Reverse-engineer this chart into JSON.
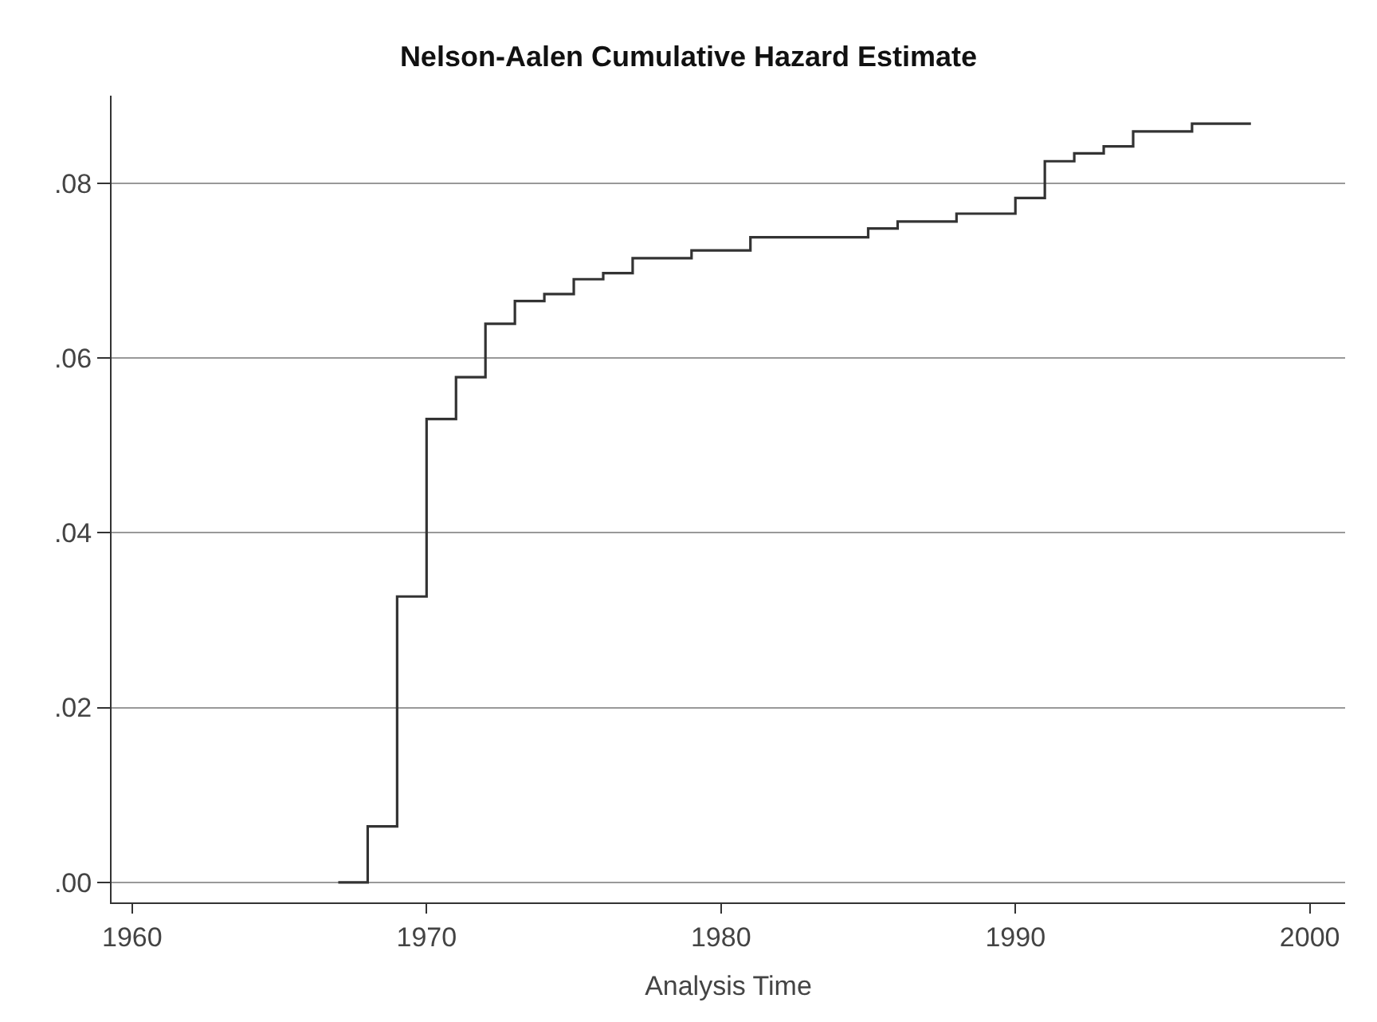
{
  "chart_data": {
    "type": "step",
    "title": "Nelson-Aalen Cumulative Hazard Estimate",
    "xlabel": "Analysis Time",
    "x": [
      1967,
      1968,
      1969,
      1970,
      1971,
      1972,
      1973,
      1974,
      1975,
      1976,
      1977,
      1979,
      1981,
      1985,
      1986,
      1988,
      1990,
      1991,
      1992,
      1993,
      1994,
      1996,
      1998
    ],
    "series": [
      {
        "color": "#333333",
        "values": [
          0,
          0.0064,
          0.0327,
          0.053,
          0.0578,
          0.0639,
          0.0665,
          0.0673,
          0.069,
          0.0697,
          0.0714,
          0.0723,
          0.0738,
          0.0748,
          0.0756,
          0.0765,
          0.0783,
          0.0825,
          0.0834,
          0.0842,
          0.0859,
          0.0868,
          0.0868
        ]
      }
    ],
    "xlim": [
      1959.3,
      2001.2
    ],
    "xticks": [
      1960,
      1970,
      1980,
      1990,
      2000
    ],
    "ylim": [
      -0.0023,
      0.09
    ],
    "yticks": [
      {
        "value": 0,
        "label": ".00"
      },
      {
        "value": 0.02,
        "label": ".02"
      },
      {
        "value": 0.04,
        "label": ".04"
      },
      {
        "value": 0.06,
        "label": ".06"
      },
      {
        "value": 0.08,
        "label": ".08"
      }
    ],
    "grid": "y",
    "marker": "none",
    "line_style": "solid"
  }
}
